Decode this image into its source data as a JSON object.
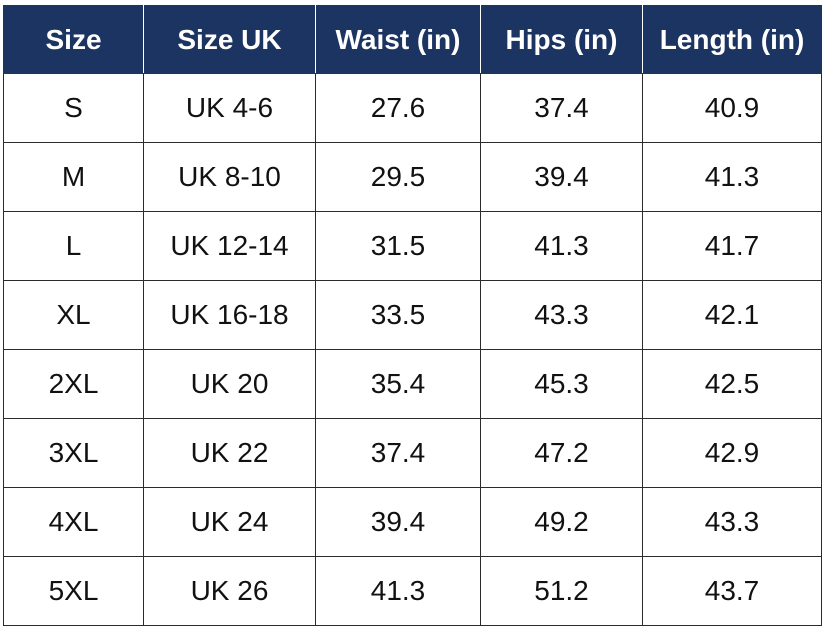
{
  "table": {
    "headers": [
      "Size",
      "Size UK",
      "Waist (in)",
      "Hips (in)",
      "Length (in)"
    ],
    "rows": [
      [
        "S",
        "UK 4-6",
        "27.6",
        "37.4",
        "40.9"
      ],
      [
        "M",
        "UK 8-10",
        "29.5",
        "39.4",
        "41.3"
      ],
      [
        "L",
        "UK 12-14",
        "31.5",
        "41.3",
        "41.7"
      ],
      [
        "XL",
        "UK 16-18",
        "33.5",
        "43.3",
        "42.1"
      ],
      [
        "2XL",
        "UK 20",
        "35.4",
        "45.3",
        "42.5"
      ],
      [
        "3XL",
        "UK 22",
        "37.4",
        "47.2",
        "42.9"
      ],
      [
        "4XL",
        "UK 24",
        "39.4",
        "49.2",
        "43.3"
      ],
      [
        "5XL",
        "UK 26",
        "41.3",
        "51.2",
        "43.7"
      ]
    ]
  }
}
